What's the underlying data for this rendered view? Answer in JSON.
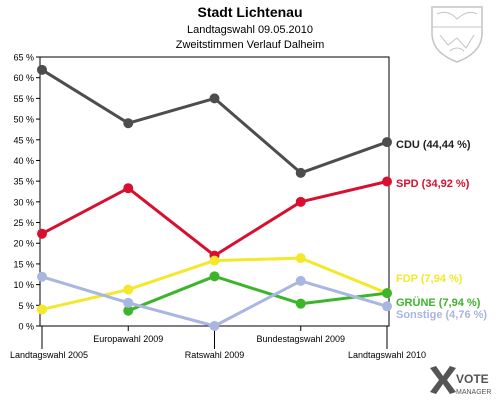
{
  "chart_data": {
    "type": "line",
    "title": "Stadt Lichtenau",
    "subtitle": "Landtagswahl 09.05.2010",
    "subtitle2": "Zweitstimmen Verlauf Dalheim",
    "categories": [
      "Landtagswahl 2005",
      "Europawahl 2009",
      "Ratswahl 2009",
      "Bundestagswahl 2009",
      "Landtagswahl 2010"
    ],
    "ylim": [
      0,
      65
    ],
    "yticks": [
      "0 %",
      "5 %",
      "10 %",
      "15 %",
      "20 %",
      "25 %",
      "30 %",
      "35 %",
      "40 %",
      "45 %",
      "50 %",
      "55 %",
      "60 %",
      "65 %"
    ],
    "grid": false,
    "series": [
      {
        "name": "CDU",
        "end_label": "CDU (44,44 %)",
        "color": "#4d4d4d",
        "label_color": "#222222",
        "values": [
          61.9,
          49,
          55,
          37,
          44.44
        ]
      },
      {
        "name": "SPD",
        "end_label": "SPD (34,92 %)",
        "color": "#d90f2f",
        "label_color": "#d90f2f",
        "values": [
          22.3,
          33.3,
          17,
          30,
          34.92
        ]
      },
      {
        "name": "FDP",
        "end_label": "FDP (7,94 %)",
        "color": "#f3e82a",
        "label_color": "#f3e82a",
        "values": [
          4,
          8.8,
          15.8,
          16.4,
          7.94
        ]
      },
      {
        "name": "GRÜNE",
        "end_label": "GRÜNE (7,94 %)",
        "color": "#3cb52b",
        "label_color": "#3cb52b",
        "values": [
          null,
          3.7,
          12,
          5.4,
          7.94
        ]
      },
      {
        "name": "Sonstige",
        "end_label": "Sonstige (4,76 %)",
        "color": "#a8b6e0",
        "label_color": "#a8b6e0",
        "values": [
          11.9,
          5.6,
          0,
          10.9,
          4.76
        ]
      }
    ]
  },
  "branding": {
    "logo_text_top": "VOTE",
    "logo_text_bottom": "MANAGER",
    "crest": "nrw-crest-icon",
    "colors": {
      "logo": "#555555",
      "crest": "#c4c4c4"
    }
  }
}
